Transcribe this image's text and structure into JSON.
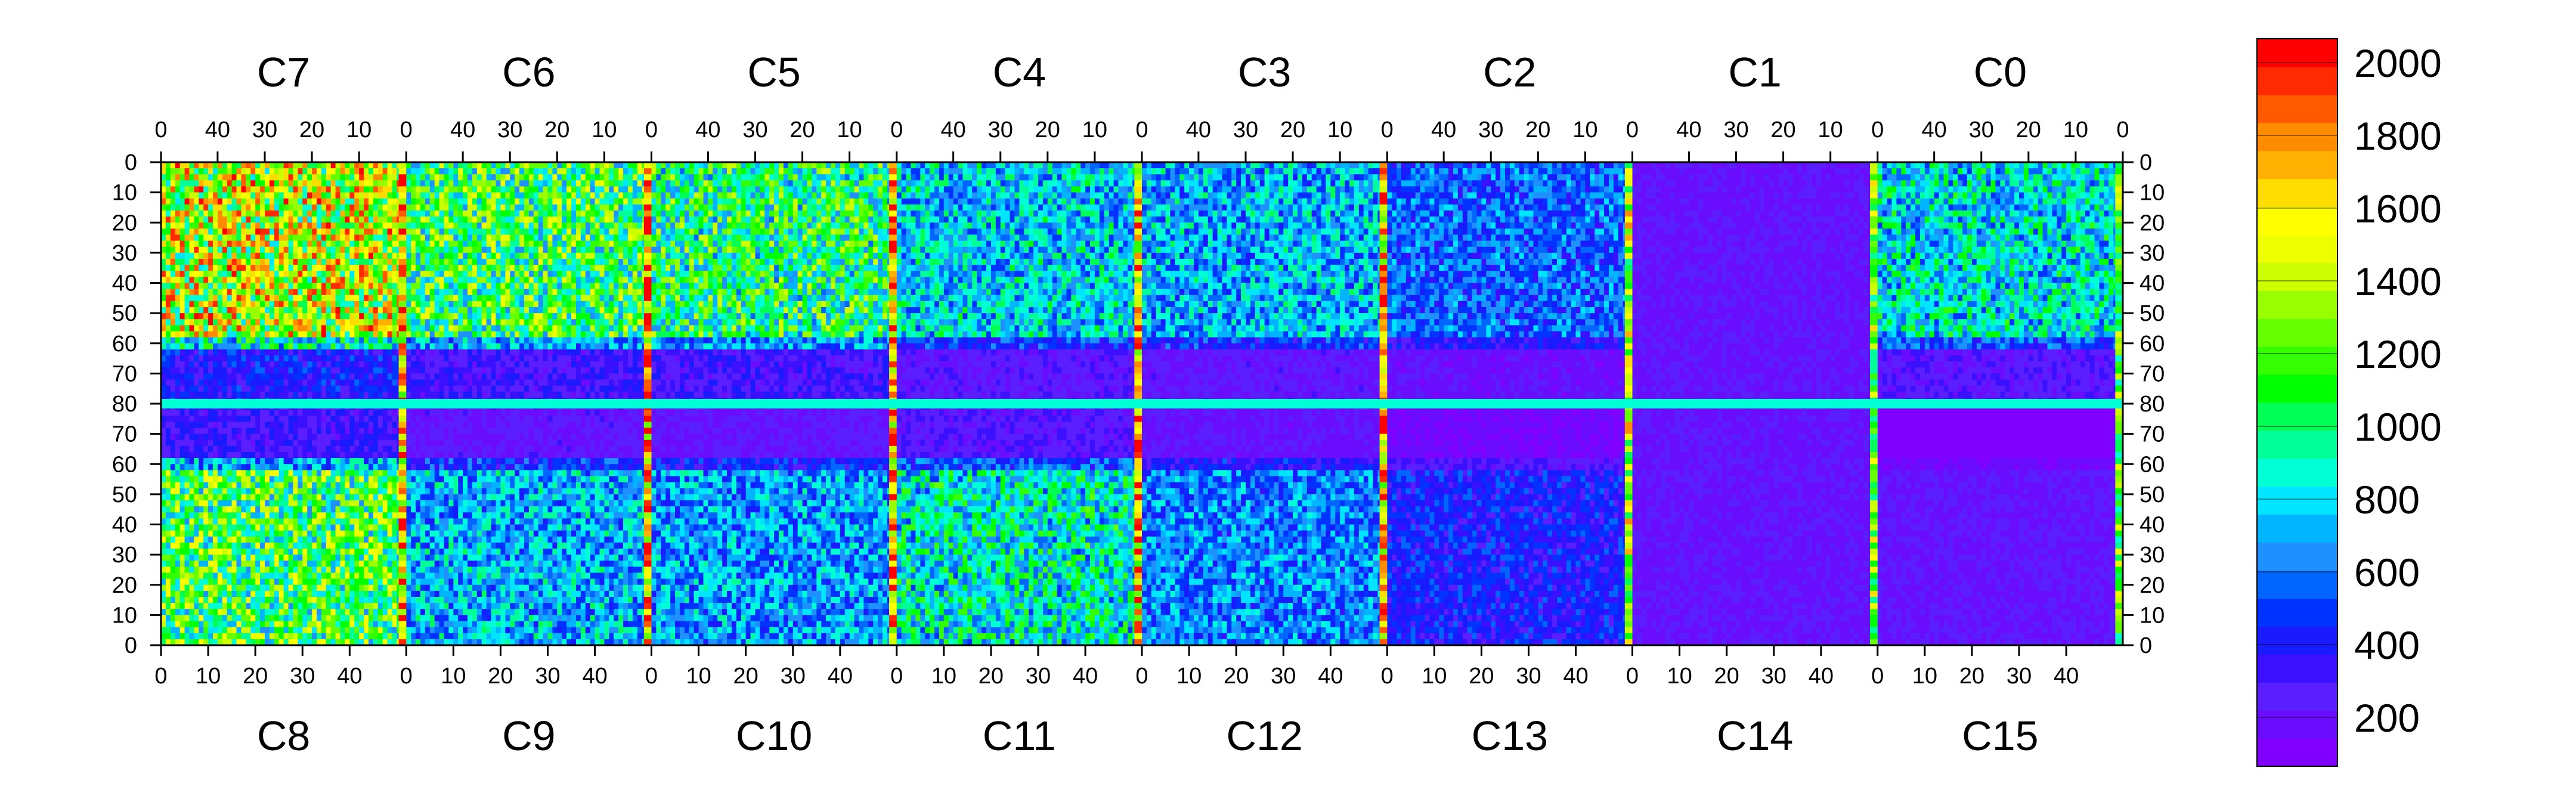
{
  "chart_data": {
    "type": "heatmap",
    "title": "",
    "xlabel": "",
    "ylabel": "",
    "chip_labels_top": [
      "C7",
      "C6",
      "C5",
      "C4",
      "C3",
      "C2",
      "C1",
      "C0"
    ],
    "chip_labels_bottom": [
      "C8",
      "C9",
      "C10",
      "C11",
      "C12",
      "C13",
      "C14",
      "C15"
    ],
    "top_ticks_per_chip": [
      "40",
      "30",
      "20",
      "10",
      "0"
    ],
    "top_tick_values": [
      40,
      30,
      20,
      10,
      0
    ],
    "top_trailing_tick": "0",
    "bottom_ticks_per_chip": [
      "0",
      "10",
      "20",
      "30",
      "40"
    ],
    "bottom_tick_values": [
      0,
      10,
      20,
      30,
      40
    ],
    "y_ticks_top_half": [
      "0",
      "10",
      "20",
      "30",
      "40",
      "50",
      "60",
      "70",
      "80"
    ],
    "y_ticks_bottom_half": [
      "70",
      "60",
      "50",
      "40",
      "30",
      "20",
      "10",
      "0"
    ],
    "columns_per_chip": 52,
    "rows_per_half": 80,
    "zlim": [
      0,
      2000
    ],
    "colorbar_ticks": [
      "200",
      "400",
      "600",
      "800",
      "1000",
      "1200",
      "1400",
      "1600",
      "1800",
      "2000"
    ],
    "colorbar_tick_values": [
      200,
      400,
      600,
      800,
      1000,
      1200,
      1400,
      1600,
      1800,
      2000
    ],
    "palette": [
      "#7f00ff",
      "#6a0dff",
      "#5b1fff",
      "#3b10ff",
      "#1a1aff",
      "#0033ff",
      "#0066ff",
      "#1e90ff",
      "#00b4ff",
      "#00e5ff",
      "#00ffd5",
      "#00ff99",
      "#00ff55",
      "#00ff00",
      "#33ff00",
      "#66ff00",
      "#99ff00",
      "#ccff00",
      "#eeff00",
      "#ffff00",
      "#ffdd00",
      "#ffb000",
      "#ff8c00",
      "#ff5a00",
      "#ff2a00",
      "#ff0000"
    ],
    "top_half_chip_mean": [
      1350,
      1000,
      950,
      700,
      650,
      500,
      150,
      750
    ],
    "bottom_half_chip_mean": [
      1050,
      650,
      600,
      800,
      550,
      350,
      150,
      150
    ],
    "edge_column_mean": [
      1850,
      1900,
      1900,
      1850,
      1800,
      1500,
      1400,
      1300
    ],
    "chip_row_boundary": 80
  }
}
